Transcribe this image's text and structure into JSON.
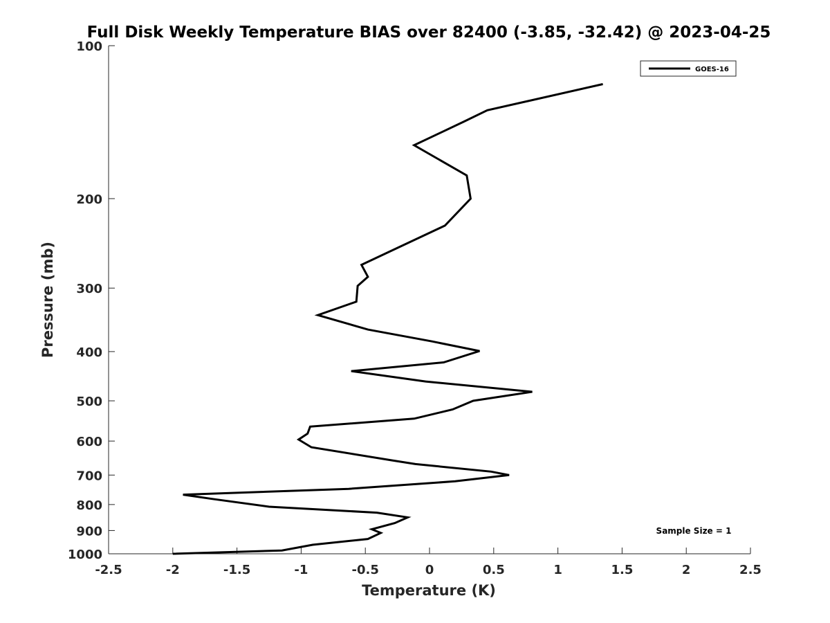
{
  "chart_data": {
    "type": "line",
    "title": "Full Disk Weekly Temperature BIAS over 82400 (-3.85, -32.42) @ 2023-04-25",
    "xlabel": "Temperature (K)",
    "ylabel": "Pressure (mb)",
    "xlim": [
      -2.5,
      2.5
    ],
    "ylim": [
      100,
      1000
    ],
    "y_scale": "log",
    "y_reversed": true,
    "grid": false,
    "legend_position": "top-right",
    "x_ticks": [
      "-2.5",
      "-2",
      "-1.5",
      "-1",
      "-0.5",
      "0",
      "0.5",
      "1",
      "1.5",
      "2",
      "2.5"
    ],
    "x_tick_values": [
      -2.5,
      -2,
      -1.5,
      -1,
      -0.5,
      0,
      0.5,
      1,
      1.5,
      2,
      2.5
    ],
    "y_ticks": [
      "100",
      "200",
      "300",
      "400",
      "500",
      "600",
      "700",
      "800",
      "900",
      "1000"
    ],
    "y_tick_values": [
      100,
      200,
      300,
      400,
      500,
      600,
      700,
      800,
      900,
      1000
    ],
    "series": [
      {
        "name": "GOES-16",
        "color": "#000000",
        "x": [
          1.35,
          0.45,
          0.27,
          -0.12,
          0.29,
          0.32,
          0.12,
          -0.25,
          -0.53,
          -0.48,
          -0.56,
          -0.57,
          -0.87,
          -0.48,
          0.02,
          0.39,
          0.11,
          -0.61,
          -0.03,
          0.8,
          0.34,
          0.18,
          -0.12,
          -0.93,
          -0.95,
          -1.02,
          -0.92,
          -0.29,
          -0.11,
          0.48,
          0.62,
          0.2,
          -0.63,
          -1.92,
          -1.69,
          -1.25,
          -0.41,
          -0.17,
          -0.27,
          -0.45,
          -0.38,
          -0.48,
          -0.91,
          -1.15,
          -2.0
        ],
        "y": [
          119,
          134,
          141,
          157,
          180,
          200,
          226,
          250,
          270,
          285,
          297,
          319,
          339,
          362,
          382,
          399,
          420,
          437,
          458,
          480,
          500,
          520,
          542,
          562,
          580,
          596,
          617,
          655,
          666,
          689,
          700,
          720,
          745,
          765,
          780,
          808,
          830,
          848,
          870,
          895,
          910,
          935,
          960,
          985,
          1000
        ]
      }
    ],
    "annotations": [
      "Sample Size = 1"
    ]
  }
}
